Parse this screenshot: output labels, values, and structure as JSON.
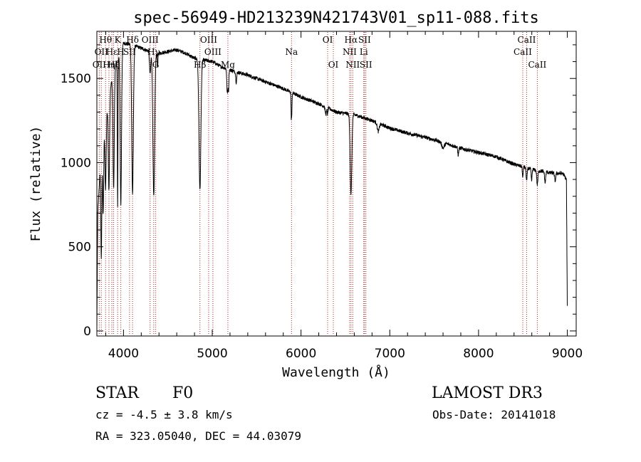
{
  "chart_data": {
    "type": "line",
    "title": "spec-56949-HD213239N421743V01_sp11-088.fits",
    "xlabel": "Wavelength (Å)",
    "ylabel": "Flux (relative)",
    "xlim": [
      3700,
      9100
    ],
    "ylim": [
      -30,
      1780
    ],
    "xticks": [
      4000,
      5000,
      6000,
      7000,
      8000,
      9000
    ],
    "xtick_labels": [
      "4000",
      "5000",
      "6000",
      "7000",
      "8000",
      "9000"
    ],
    "yticks": [
      0,
      500,
      1000,
      1500
    ],
    "ytick_labels": [
      "0",
      "500",
      "1000",
      "1500"
    ],
    "continuum": [
      [
        3700,
        0
      ],
      [
        3710,
        700
      ],
      [
        3750,
        1080
      ],
      [
        3800,
        1250
      ],
      [
        3850,
        1440
      ],
      [
        3900,
        1560
      ],
      [
        3950,
        1650
      ],
      [
        4000,
        1710
      ],
      [
        4100,
        1700
      ],
      [
        4200,
        1680
      ],
      [
        4300,
        1660
      ],
      [
        4400,
        1650
      ],
      [
        4500,
        1660
      ],
      [
        4600,
        1670
      ],
      [
        4700,
        1650
      ],
      [
        4800,
        1620
      ],
      [
        4900,
        1610
      ],
      [
        5000,
        1600
      ],
      [
        5100,
        1570
      ],
      [
        5200,
        1550
      ],
      [
        5400,
        1520
      ],
      [
        5600,
        1480
      ],
      [
        5800,
        1440
      ],
      [
        6000,
        1390
      ],
      [
        6200,
        1350
      ],
      [
        6400,
        1300
      ],
      [
        6600,
        1285
      ],
      [
        6800,
        1250
      ],
      [
        7000,
        1205
      ],
      [
        7200,
        1175
      ],
      [
        7400,
        1150
      ],
      [
        7600,
        1120
      ],
      [
        7800,
        1085
      ],
      [
        8000,
        1060
      ],
      [
        8200,
        1035
      ],
      [
        8400,
        990
      ],
      [
        8600,
        960
      ],
      [
        8800,
        940
      ],
      [
        8950,
        935
      ],
      [
        8990,
        900
      ],
      [
        9000,
        140
      ]
    ],
    "absorption_features": [
      [
        3750,
        0.6,
        8
      ],
      [
        3771,
        0.4,
        8
      ],
      [
        3798,
        0.32,
        9
      ],
      [
        3836,
        0.4,
        10
      ],
      [
        3889,
        0.45,
        10
      ],
      [
        3934,
        0.55,
        5
      ],
      [
        3970,
        0.55,
        11
      ],
      [
        4102,
        0.52,
        13
      ],
      [
        4300,
        0.08,
        10
      ],
      [
        4341,
        0.52,
        14
      ],
      [
        4384,
        0.05,
        6
      ],
      [
        4861,
        0.48,
        15
      ],
      [
        5167,
        0.05,
        7
      ],
      [
        5172,
        0.06,
        7
      ],
      [
        5183,
        0.08,
        6
      ],
      [
        5270,
        0.04,
        8
      ],
      [
        5890,
        0.1,
        4
      ],
      [
        5896,
        0.09,
        4
      ],
      [
        6280,
        0.03,
        12
      ],
      [
        6300,
        0.03,
        5
      ],
      [
        6563,
        0.37,
        13
      ],
      [
        6870,
        0.04,
        15
      ],
      [
        7600,
        0.03,
        20
      ],
      [
        7771,
        0.04,
        8
      ],
      [
        8498,
        0.07,
        6
      ],
      [
        8542,
        0.08,
        8
      ],
      [
        8598,
        0.07,
        7
      ],
      [
        8662,
        0.09,
        9
      ],
      [
        8750,
        0.07,
        8
      ],
      [
        8863,
        0.05,
        9
      ]
    ],
    "line_markers": [
      {
        "wl": 3727,
        "label": "OII",
        "row": 3
      },
      {
        "wl": 3750,
        "label": "OII",
        "row": 2
      },
      {
        "wl": 3798,
        "label": "Hθ",
        "row": 1
      },
      {
        "wl": 3836,
        "label": "Hη",
        "row": 3
      },
      {
        "wl": 3869,
        "label": "Hε",
        "row": 2
      },
      {
        "wl": 3889,
        "label": "Hζ",
        "row": 3
      },
      {
        "wl": 3934,
        "label": "K",
        "row": 1
      },
      {
        "wl": 3970,
        "label": "H",
        "row": 2
      },
      {
        "wl": 4068,
        "label": "SII",
        "row": 2
      },
      {
        "wl": 4102,
        "label": "Hδ",
        "row": 1
      },
      {
        "wl": 4300,
        "label": "OIII",
        "row": 1
      },
      {
        "wl": 4341,
        "label": "Hγ",
        "row": 2
      },
      {
        "wl": 4363,
        "label": "G",
        "row": 3
      },
      {
        "wl": 4861,
        "label": "Hβ",
        "row": 3
      },
      {
        "wl": 4959,
        "label": "OIII",
        "row": 1
      },
      {
        "wl": 5007,
        "label": "OIII",
        "row": 2
      },
      {
        "wl": 5176,
        "label": "Mg",
        "row": 3
      },
      {
        "wl": 5893,
        "label": "Na",
        "row": 2
      },
      {
        "wl": 6300,
        "label": "OI",
        "row": 1
      },
      {
        "wl": 6364,
        "label": "OI",
        "row": 3
      },
      {
        "wl": 6548,
        "label": "NII",
        "row": 2
      },
      {
        "wl": 6563,
        "label": "Hα",
        "row": 1
      },
      {
        "wl": 6583,
        "label": "NII",
        "row": 3
      },
      {
        "wl": 6707,
        "label": "Li",
        "row": 2
      },
      {
        "wl": 6716,
        "label": "SII",
        "row": 1
      },
      {
        "wl": 6731,
        "label": "SII",
        "row": 3
      },
      {
        "wl": 8498,
        "label": "CaII",
        "row": 2
      },
      {
        "wl": 8542,
        "label": "CaII",
        "row": 1
      },
      {
        "wl": 8662,
        "label": "CaII",
        "row": 3
      }
    ]
  },
  "info": {
    "obj_class": "STAR",
    "subclass": "F0",
    "survey": "LAMOST DR3",
    "cz": "cz = -4.5 ± 3.8 km/s",
    "obs_date": "Obs-Date: 20141018",
    "coords": "RA = 323.05040, DEC =  44.03079"
  }
}
